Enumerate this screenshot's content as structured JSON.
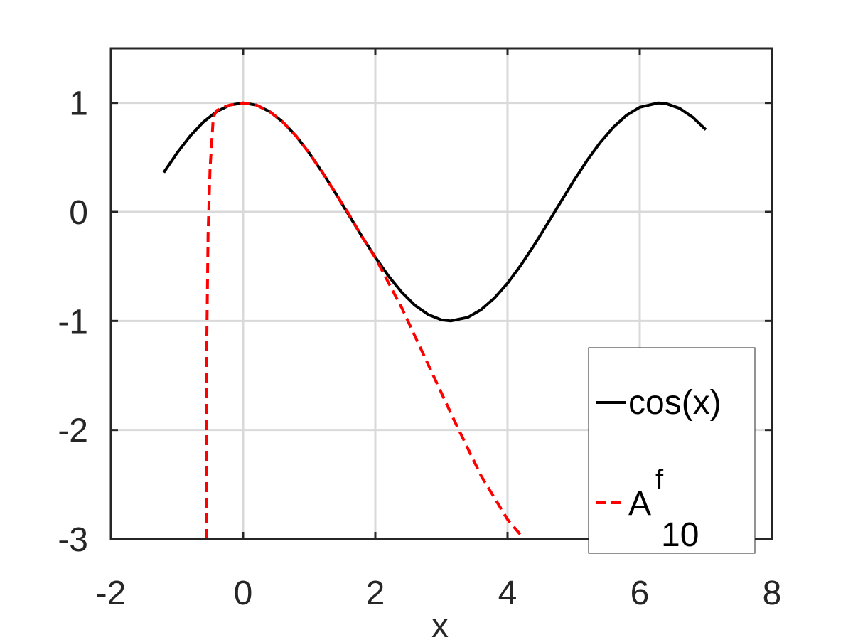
{
  "chart_data": {
    "type": "line",
    "title": "",
    "xlabel": "x",
    "ylabel": "",
    "xlim": [
      -2,
      8
    ],
    "ylim": [
      -3,
      1.5
    ],
    "xticks": [
      -2,
      0,
      2,
      4,
      6,
      8
    ],
    "yticks": [
      -3,
      -2,
      -1,
      0,
      1
    ],
    "xtick_labels": [
      "-2",
      "0",
      "2",
      "4",
      "6",
      "8"
    ],
    "ytick_labels": [
      "-3",
      "-2",
      "-1",
      "0",
      "1"
    ],
    "grid": true,
    "legend": {
      "placement": "bottom-right",
      "entries": [
        {
          "label": "cos(x)",
          "style": "solid",
          "color": "#000000"
        },
        {
          "label": "A",
          "superscript": "f",
          "subscript": "10",
          "style": "dashed",
          "color": "#ff0000"
        }
      ]
    },
    "series": [
      {
        "name": "cos(x)",
        "color": "#000000",
        "style": "solid",
        "x": [
          -1.2,
          -1.0,
          -0.8,
          -0.6,
          -0.4,
          -0.2,
          0.0,
          0.2,
          0.4,
          0.6,
          0.8,
          1.0,
          1.2,
          1.4,
          1.6,
          1.8,
          2.0,
          2.2,
          2.4,
          2.6,
          2.8,
          3.0,
          3.14,
          3.4,
          3.6,
          3.8,
          4.0,
          4.2,
          4.4,
          4.6,
          4.8,
          5.0,
          5.2,
          5.4,
          5.6,
          5.8,
          6.0,
          6.28,
          6.4,
          6.6,
          6.8,
          7.0
        ],
        "y": [
          0.362,
          0.54,
          0.697,
          0.825,
          0.921,
          0.98,
          1.0,
          0.98,
          0.921,
          0.825,
          0.697,
          0.54,
          0.362,
          0.17,
          -0.029,
          -0.227,
          -0.416,
          -0.589,
          -0.737,
          -0.857,
          -0.942,
          -0.99,
          -1.0,
          -0.967,
          -0.897,
          -0.791,
          -0.654,
          -0.49,
          -0.307,
          -0.112,
          0.087,
          0.284,
          0.469,
          0.635,
          0.776,
          0.886,
          0.96,
          1.0,
          0.993,
          0.951,
          0.869,
          0.754
        ]
      },
      {
        "name": "A",
        "color": "#ff0000",
        "style": "dashed",
        "x": [
          -0.55,
          -0.55,
          -0.53,
          -0.5,
          -0.45,
          -0.4,
          -0.3,
          -0.2,
          0.0,
          0.2,
          0.4,
          0.6,
          0.8,
          1.0,
          1.2,
          1.4,
          1.6,
          1.8,
          2.0,
          2.4,
          2.8,
          3.2,
          3.6,
          4.0,
          4.25
        ],
        "y": [
          -3.0,
          -1.2,
          -0.2,
          0.4,
          0.87,
          0.93,
          0.96,
          0.98,
          1.0,
          0.98,
          0.921,
          0.825,
          0.697,
          0.54,
          0.362,
          0.17,
          -0.02,
          -0.23,
          -0.42,
          -0.88,
          -1.4,
          -1.92,
          -2.42,
          -2.82,
          -3.0
        ]
      }
    ]
  }
}
